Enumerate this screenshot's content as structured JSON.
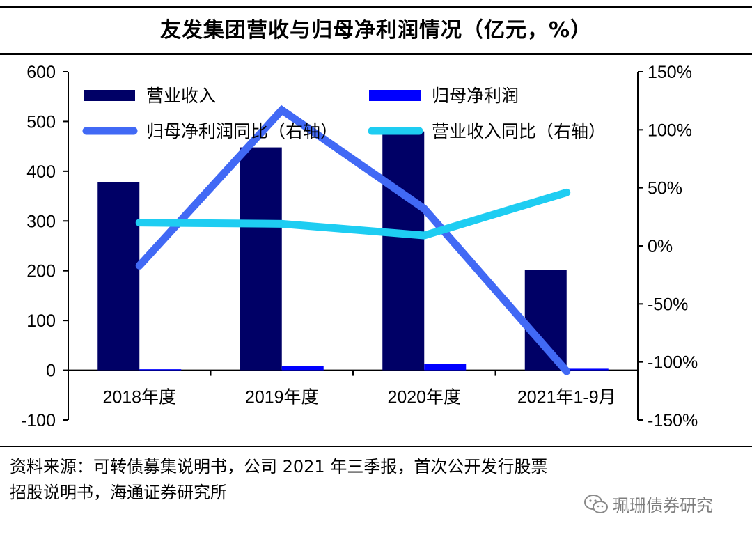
{
  "chart_data": {
    "type": "bar+line",
    "title": "友发集团营收与归母净利润情况（亿元，%）",
    "categories": [
      "2018年度",
      "2019年度",
      "2020年度",
      "2021年1-9月"
    ],
    "y_left": {
      "min": -100,
      "max": 600,
      "ticks": [
        "600",
        "500",
        "400",
        "300",
        "200",
        "100",
        "0",
        "-100"
      ]
    },
    "y_right": {
      "min": -150,
      "max": 150,
      "ticks": [
        "150%",
        "100%",
        "50%",
        "0%",
        "-50%",
        "-100%",
        "-150%"
      ]
    },
    "series": [
      {
        "name": "营业收入",
        "kind": "bar",
        "axis": "left",
        "color": "#000066",
        "values": [
          378,
          448,
          480,
          202
        ]
      },
      {
        "name": "归母净利润",
        "kind": "bar",
        "axis": "left",
        "color": "#0000ff",
        "values": [
          2,
          9,
          12,
          3
        ]
      },
      {
        "name": "归母净利润同比（右轴）",
        "kind": "line",
        "axis": "right",
        "color": "#4169f5",
        "values": [
          -17,
          117,
          32,
          -108
        ]
      },
      {
        "name": "营业收入同比（右轴）",
        "kind": "line",
        "axis": "right",
        "color": "#1ecdf2",
        "values": [
          20,
          19,
          9,
          46
        ]
      }
    ],
    "legend": "top-inside"
  },
  "footer": {
    "source_line1": "资料来源：可转债募集说明书，公司 2021 年三季报，首次公开发行股票",
    "source_line2": "招股说明书，海通证券研究所",
    "watermark": "珮珊债券研究"
  }
}
